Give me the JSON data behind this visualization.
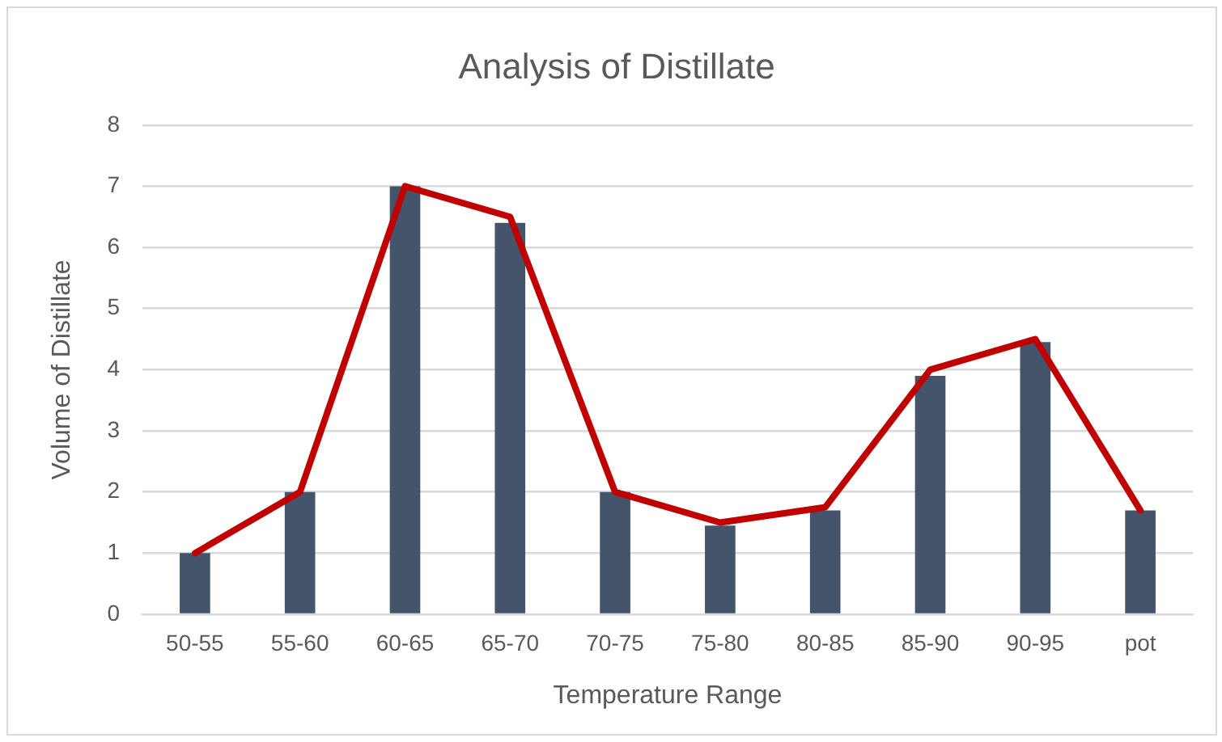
{
  "chart_data": {
    "type": "bar",
    "title": "Analysis of Distillate",
    "xlabel": "Temperature Range",
    "ylabel": "Volume of Distillate",
    "categories": [
      "50-55",
      "55-60",
      "60-65",
      "65-70",
      "70-75",
      "75-80",
      "80-85",
      "85-90",
      "90-95",
      "pot"
    ],
    "series": [
      {
        "color": "#44546a",
        "values": [
          1,
          2,
          7,
          6.4,
          2,
          1.45,
          1.7,
          3.9,
          4.45,
          1.7
        ]
      },
      {
        "type": "line",
        "color": "#c00000",
        "values": [
          1,
          2,
          7,
          6.5,
          2,
          1.5,
          1.75,
          4,
          4.5,
          1.7
        ]
      }
    ],
    "ylim": [
      0,
      8
    ],
    "yticks": [
      0,
      1,
      2,
      3,
      4,
      5,
      6,
      7,
      8
    ],
    "grid": "y",
    "marker": "none",
    "line_style": "solid"
  }
}
